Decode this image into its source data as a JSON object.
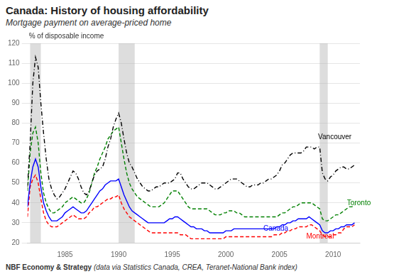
{
  "chart_data": {
    "type": "line",
    "title": "Canada: History of housing affordability",
    "subtitle": "Mortgage payment on average-priced home",
    "ylabel": "% of disposable income",
    "footer_bold": "NBF Economy & Strategy ",
    "footer_italic": "(data via Statistics Canada, CREA, Teranet-National Bank index)",
    "xlim": [
      1981.5,
      2012.5
    ],
    "ylim": [
      20,
      120
    ],
    "xticks": [
      1985,
      1990,
      1995,
      2000,
      2005,
      2010
    ],
    "yticks": [
      20,
      30,
      40,
      50,
      60,
      70,
      80,
      90,
      100,
      110,
      120
    ],
    "grid": "y",
    "recession_bands": [
      [
        1981.75,
        1982.75
      ],
      [
        1990.0,
        1991.5
      ],
      [
        2008.75,
        2009.5
      ]
    ],
    "x": [
      1981.5,
      1981.75,
      1982.0,
      1982.25,
      1982.5,
      1982.75,
      1983.0,
      1983.25,
      1983.5,
      1983.75,
      1984.0,
      1984.25,
      1984.5,
      1984.75,
      1985.0,
      1985.25,
      1985.5,
      1985.75,
      1986.0,
      1986.25,
      1986.5,
      1986.75,
      1987.0,
      1987.25,
      1987.5,
      1987.75,
      1988.0,
      1988.25,
      1988.5,
      1988.75,
      1989.0,
      1989.25,
      1989.5,
      1989.75,
      1990.0,
      1990.25,
      1990.5,
      1990.75,
      1991.0,
      1991.25,
      1991.5,
      1991.75,
      1992.0,
      1992.25,
      1992.5,
      1992.75,
      1993.0,
      1993.25,
      1993.5,
      1993.75,
      1994.0,
      1994.25,
      1994.5,
      1994.75,
      1995.0,
      1995.25,
      1995.5,
      1995.75,
      1996.0,
      1996.25,
      1996.5,
      1996.75,
      1997.0,
      1997.25,
      1997.5,
      1997.75,
      1998.0,
      1998.25,
      1998.5,
      1998.75,
      1999.0,
      1999.25,
      1999.5,
      1999.75,
      2000.0,
      2000.25,
      2000.5,
      2000.75,
      2001.0,
      2001.25,
      2001.5,
      2001.75,
      2002.0,
      2002.25,
      2002.5,
      2002.75,
      2003.0,
      2003.25,
      2003.5,
      2003.75,
      2004.0,
      2004.25,
      2004.5,
      2004.75,
      2005.0,
      2005.25,
      2005.5,
      2005.75,
      2006.0,
      2006.25,
      2006.5,
      2006.75,
      2007.0,
      2007.25,
      2007.5,
      2007.75,
      2008.0,
      2008.25,
      2008.5,
      2008.75,
      2009.0,
      2009.25,
      2009.5,
      2009.75,
      2010.0,
      2010.25,
      2010.5,
      2010.75,
      2011.0,
      2011.25,
      2011.5,
      2011.75,
      2012.0
    ],
    "series": [
      {
        "name": "Vancouver",
        "color": "#000000",
        "line_style": "dashdot",
        "label_x": 2008.6,
        "label_y": 73,
        "values": [
          48,
          70,
          100,
          113,
          108,
          90,
          75,
          62,
          52,
          47,
          44,
          42,
          43,
          45,
          47,
          50,
          53,
          56,
          55,
          52,
          48,
          45,
          44,
          46,
          50,
          54,
          56,
          57,
          58,
          62,
          68,
          72,
          78,
          82,
          85,
          80,
          72,
          65,
          60,
          58,
          55,
          52,
          50,
          48,
          47,
          46,
          46,
          47,
          48,
          48,
          49,
          50,
          50,
          50,
          51,
          52,
          55,
          55,
          52,
          50,
          48,
          47,
          47,
          48,
          49,
          50,
          50,
          50,
          49,
          48,
          47,
          47,
          48,
          49,
          50,
          51,
          52,
          52,
          52,
          51,
          50,
          49,
          48,
          48,
          49,
          49,
          49,
          50,
          50,
          51,
          52,
          52,
          53,
          54,
          56,
          59,
          60,
          62,
          64,
          65,
          65,
          65,
          65,
          66,
          68,
          68,
          68,
          67,
          68,
          68,
          55,
          52,
          51,
          53,
          54,
          56,
          57,
          58,
          58,
          57,
          57,
          58,
          59
        ]
      },
      {
        "name": "Toronto",
        "color": "#008000",
        "line_style": "dashed",
        "label_x": 2011.3,
        "label_y": 40,
        "values": [
          46,
          65,
          75,
          78,
          70,
          55,
          45,
          40,
          37,
          35,
          35,
          36,
          37,
          38,
          40,
          41,
          42,
          43,
          42,
          41,
          40,
          40,
          42,
          45,
          50,
          55,
          58,
          62,
          65,
          68,
          72,
          74,
          76,
          77,
          78,
          70,
          62,
          55,
          50,
          47,
          45,
          43,
          42,
          41,
          40,
          39,
          38,
          38,
          38,
          38,
          39,
          40,
          42,
          44,
          46,
          46,
          46,
          44,
          42,
          40,
          38,
          37,
          37,
          37,
          37,
          37,
          37,
          37,
          36,
          35,
          34,
          34,
          34,
          35,
          35,
          36,
          36,
          36,
          35,
          35,
          34,
          33,
          33,
          33,
          33,
          33,
          33,
          33,
          33,
          33,
          33,
          33,
          33,
          33,
          34,
          35,
          35,
          36,
          37,
          38,
          38,
          39,
          40,
          40,
          40,
          40,
          40,
          39,
          38,
          37,
          32,
          31,
          31,
          32,
          33,
          34,
          34,
          35,
          36,
          37,
          38,
          38,
          39
        ]
      },
      {
        "name": "Canada",
        "color": "#0000FF",
        "line_style": "solid",
        "label_x": 2003.5,
        "label_y": 27,
        "values": [
          38,
          50,
          58,
          62,
          58,
          48,
          40,
          36,
          33,
          31,
          31,
          31,
          32,
          33,
          35,
          36,
          37,
          38,
          37,
          36,
          35,
          35,
          36,
          38,
          40,
          42,
          44,
          46,
          47,
          49,
          50,
          51,
          51,
          51,
          52,
          48,
          44,
          41,
          38,
          36,
          35,
          34,
          33,
          32,
          31,
          30,
          30,
          30,
          30,
          30,
          30,
          30,
          31,
          32,
          32,
          33,
          33,
          32,
          31,
          30,
          29,
          28,
          28,
          27,
          27,
          27,
          26,
          26,
          25,
          25,
          25,
          25,
          25,
          25,
          26,
          26,
          26,
          27,
          27,
          27,
          27,
          27,
          27,
          27,
          27,
          27,
          27,
          27,
          27,
          27,
          27,
          27,
          27,
          28,
          28,
          29,
          29,
          30,
          30,
          31,
          31,
          32,
          32,
          32,
          32,
          33,
          32,
          31,
          30,
          29,
          26,
          25,
          25,
          26,
          26,
          27,
          27,
          28,
          28,
          29,
          29,
          29,
          30
        ]
      },
      {
        "name": "Montreal",
        "color": "#FF0000",
        "line_style": "dashed",
        "label_x": 2007.5,
        "label_y": 23,
        "values": [
          33,
          48,
          52,
          54,
          50,
          42,
          35,
          31,
          29,
          28,
          28,
          28,
          29,
          30,
          31,
          32,
          33,
          34,
          33,
          32,
          32,
          32,
          33,
          35,
          36,
          38,
          38,
          39,
          40,
          41,
          42,
          42,
          43,
          43,
          44,
          40,
          37,
          35,
          33,
          32,
          31,
          30,
          29,
          28,
          27,
          26,
          25,
          25,
          25,
          25,
          25,
          25,
          25,
          25,
          25,
          25,
          25,
          24,
          24,
          24,
          23,
          22,
          22,
          22,
          22,
          22,
          22,
          22,
          22,
          22,
          22,
          22,
          22,
          22,
          23,
          23,
          23,
          23,
          23,
          23,
          23,
          23,
          23,
          23,
          23,
          23,
          23,
          23,
          23,
          23,
          23,
          23,
          24,
          24,
          24,
          25,
          25,
          26,
          26,
          27,
          27,
          28,
          28,
          28,
          28,
          29,
          29,
          28,
          27,
          26,
          24,
          23,
          23,
          23,
          24,
          24,
          25,
          25,
          27,
          28,
          28,
          28,
          29
        ]
      }
    ]
  }
}
